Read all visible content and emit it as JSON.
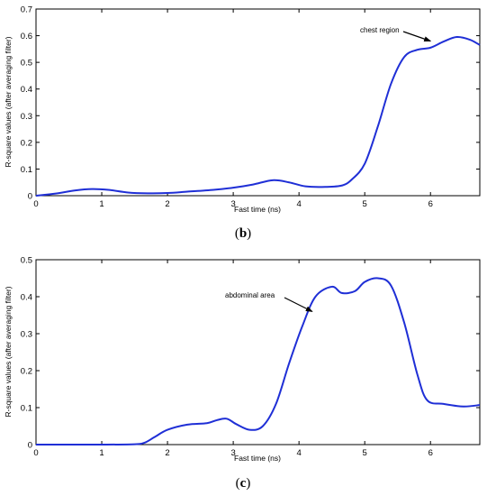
{
  "chart_data": [
    {
      "type": "line",
      "panel": "b",
      "xlabel": "Fast time (ns)",
      "ylabel": "R-square values (after averaging filter)",
      "xlim": [
        0,
        6.75
      ],
      "ylim": [
        0,
        0.7
      ],
      "xticks": [
        0,
        1,
        2,
        3,
        4,
        5,
        6
      ],
      "yticks": [
        0,
        0.1,
        0.2,
        0.3,
        0.4,
        0.5,
        0.6,
        0.7
      ],
      "ytick_labels": [
        "0",
        "0.1",
        "0.2",
        "0.3",
        "0.4",
        "0.5",
        "0.6",
        "0.7"
      ],
      "grid": false,
      "color": "#1f2fd6",
      "annotation": {
        "text": "chest region",
        "x": 6.0,
        "y": 0.58
      },
      "x": [
        0,
        0.3,
        0.6,
        0.85,
        1.1,
        1.4,
        1.7,
        2.0,
        2.3,
        2.7,
        3.0,
        3.3,
        3.6,
        3.85,
        4.1,
        4.4,
        4.65,
        4.8,
        5.0,
        5.2,
        5.4,
        5.6,
        5.8,
        6.0,
        6.2,
        6.4,
        6.6,
        6.75
      ],
      "y": [
        0,
        0.008,
        0.02,
        0.025,
        0.022,
        0.012,
        0.009,
        0.01,
        0.015,
        0.022,
        0.03,
        0.042,
        0.058,
        0.05,
        0.035,
        0.033,
        0.038,
        0.06,
        0.12,
        0.26,
        0.42,
        0.52,
        0.547,
        0.555,
        0.578,
        0.595,
        0.585,
        0.565
      ]
    },
    {
      "type": "line",
      "panel": "c",
      "xlabel": "Fast time (ns)",
      "ylabel": "R-square values (after averaging filter)",
      "xlim": [
        0,
        6.75
      ],
      "ylim": [
        0,
        0.5
      ],
      "xticks": [
        0,
        1,
        2,
        3,
        4,
        5,
        6
      ],
      "yticks": [
        0,
        0.1,
        0.2,
        0.3,
        0.4,
        0.5
      ],
      "ytick_labels": [
        "0",
        "0.1",
        "0.2",
        "0.3",
        "0.4",
        "0.5"
      ],
      "grid": false,
      "color": "#1f2fd6",
      "annotation": {
        "text": "abdominal area",
        "x": 4.2,
        "y": 0.36
      },
      "x": [
        0,
        1.0,
        1.5,
        1.65,
        1.8,
        2.0,
        2.3,
        2.6,
        2.75,
        2.9,
        3.05,
        3.25,
        3.45,
        3.65,
        3.85,
        4.05,
        4.25,
        4.5,
        4.65,
        4.85,
        5.0,
        5.2,
        5.4,
        5.6,
        5.8,
        5.95,
        6.2,
        6.5,
        6.75
      ],
      "y": [
        0,
        0,
        0.001,
        0.005,
        0.02,
        0.04,
        0.054,
        0.058,
        0.066,
        0.07,
        0.055,
        0.04,
        0.05,
        0.11,
        0.22,
        0.32,
        0.4,
        0.427,
        0.41,
        0.415,
        0.44,
        0.45,
        0.43,
        0.33,
        0.19,
        0.12,
        0.11,
        0.103,
        0.107
      ]
    }
  ],
  "captions": {
    "b_open": "(",
    "b_letter": "b",
    "b_close": ")",
    "c_open": "(",
    "c_letter": "c",
    "c_close": ")"
  }
}
